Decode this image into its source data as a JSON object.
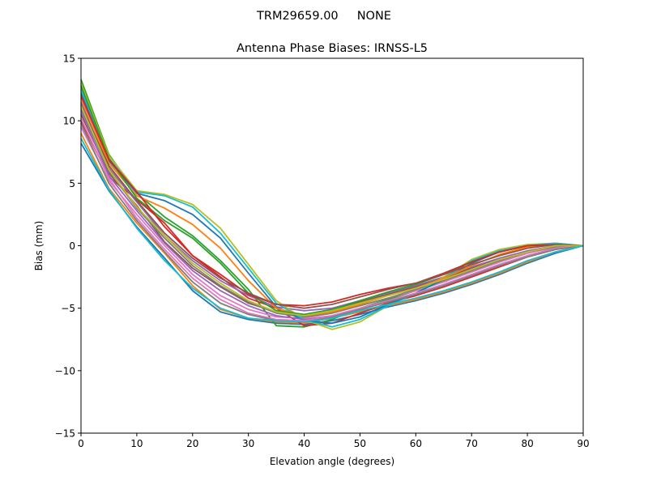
{
  "chart_data": {
    "type": "line",
    "suptitle": "TRM29659.00     NONE",
    "title": "Antenna Phase Biases: IRNSS-L5",
    "xlabel": "Elevation angle (degrees)",
    "ylabel": "Bias (mm)",
    "xlim": [
      0,
      90
    ],
    "ylim": [
      -15,
      15
    ],
    "xticks": [
      0,
      10,
      20,
      30,
      40,
      50,
      60,
      70,
      80,
      90
    ],
    "yticks": [
      -15,
      -10,
      -5,
      0,
      5,
      10,
      15
    ],
    "grid": false,
    "colors": [
      "#1f77b4",
      "#ff7f0e",
      "#2ca02c",
      "#d62728",
      "#9467bd",
      "#8c564b",
      "#e377c2",
      "#7f7f7f",
      "#bcbd22",
      "#17becf"
    ],
    "x": [
      0,
      5,
      10,
      15,
      20,
      25,
      30,
      35,
      40,
      45,
      50,
      55,
      60,
      65,
      70,
      75,
      80,
      85,
      90
    ],
    "series": [
      {
        "values": [
          8.2,
          4.4,
          1.5,
          -1.0,
          -3.6,
          -5.3,
          -5.9,
          -6.2,
          -6.3,
          -6.0,
          -5.5,
          -4.9,
          -4.4,
          -3.8,
          -3.1,
          -2.3,
          -1.4,
          -0.6,
          0
        ]
      },
      {
        "values": [
          9.0,
          4.6,
          1.8,
          -0.6,
          -3.2,
          -5.1,
          -5.8,
          -6.1,
          -6.2,
          -5.8,
          -5.3,
          -4.8,
          -4.3,
          -3.7,
          -3.0,
          -2.2,
          -1.3,
          -0.5,
          0
        ]
      },
      {
        "values": [
          13.3,
          7.3,
          4.2,
          2.3,
          0.8,
          -1.2,
          -3.5,
          -6.4,
          -6.5,
          -5.9,
          -5.0,
          -4.3,
          -3.6,
          -2.9,
          -2.1,
          -1.3,
          -0.6,
          -0.1,
          0
        ]
      },
      {
        "values": [
          10.0,
          5.5,
          3.7,
          1.8,
          -0.8,
          -2.5,
          -4.2,
          -5.0,
          -6.4,
          -6.2,
          -5.4,
          -4.6,
          -4.0,
          -3.3,
          -2.5,
          -1.7,
          -0.9,
          -0.3,
          0
        ]
      },
      {
        "values": [
          11.5,
          6.2,
          3.5,
          0.8,
          -1.2,
          -2.8,
          -4.0,
          -4.9,
          -5.2,
          -5.0,
          -4.4,
          -3.8,
          -3.2,
          -2.5,
          -1.7,
          -1.0,
          -0.4,
          0.0,
          0
        ]
      },
      {
        "values": [
          10.5,
          5.8,
          3.2,
          0.3,
          -1.8,
          -3.3,
          -4.6,
          -5.3,
          -5.5,
          -5.1,
          -4.5,
          -3.9,
          -3.3,
          -2.6,
          -1.8,
          -1.1,
          -0.5,
          -0.1,
          0
        ]
      },
      {
        "values": [
          9.5,
          5.2,
          2.5,
          0.0,
          -2.3,
          -4.0,
          -5.1,
          -5.7,
          -5.8,
          -5.4,
          -4.8,
          -4.2,
          -3.6,
          -2.9,
          -2.1,
          -1.3,
          -0.6,
          -0.1,
          0
        ]
      },
      {
        "values": [
          11.0,
          6.0,
          3.0,
          0.6,
          -1.6,
          -3.2,
          -4.5,
          -5.4,
          -5.7,
          -5.4,
          -4.8,
          -4.2,
          -3.5,
          -2.8,
          -2.0,
          -1.2,
          -0.5,
          -0.1,
          0
        ]
      },
      {
        "values": [
          13.0,
          7.2,
          4.4,
          4.1,
          3.3,
          1.4,
          -1.5,
          -4.4,
          -5.9,
          -6.7,
          -6.1,
          -4.8,
          -3.8,
          -2.5,
          -1.1,
          -0.3,
          0.1,
          0.2,
          0
        ]
      },
      {
        "values": [
          12.5,
          7.0,
          4.3,
          4.0,
          3.1,
          1.0,
          -1.8,
          -4.6,
          -5.9,
          -6.5,
          -5.9,
          -4.8,
          -3.8,
          -2.6,
          -1.2,
          -0.4,
          0.0,
          0.2,
          0
        ]
      },
      {
        "values": [
          12.2,
          6.8,
          4.2,
          3.6,
          2.5,
          0.6,
          -2.2,
          -4.9,
          -6.0,
          -6.2,
          -5.7,
          -4.7,
          -3.8,
          -2.7,
          -1.4,
          -0.5,
          0.0,
          0.1,
          0
        ]
      },
      {
        "values": [
          11.8,
          6.6,
          4.0,
          3.0,
          1.7,
          -0.2,
          -2.8,
          -5.0,
          -5.6,
          -5.3,
          -4.7,
          -4.0,
          -3.4,
          -2.6,
          -1.6,
          -0.7,
          -0.1,
          0.1,
          0
        ]
      },
      {
        "values": [
          12.8,
          7.0,
          3.8,
          2.0,
          0.6,
          -1.4,
          -3.8,
          -5.2,
          -5.5,
          -5.1,
          -4.4,
          -3.7,
          -3.1,
          -2.3,
          -1.3,
          -0.5,
          0.0,
          0.1,
          0
        ]
      },
      {
        "values": [
          12.0,
          6.9,
          4.3,
          1.5,
          -0.8,
          -2.3,
          -3.9,
          -4.7,
          -4.8,
          -4.5,
          -3.9,
          -3.4,
          -3.0,
          -2.2,
          -1.3,
          -0.5,
          0.0,
          0.1,
          0
        ]
      },
      {
        "values": [
          10.8,
          5.6,
          2.8,
          0.2,
          -2.0,
          -3.6,
          -4.8,
          -5.6,
          -5.9,
          -5.6,
          -5.0,
          -4.4,
          -3.8,
          -3.1,
          -2.3,
          -1.5,
          -0.8,
          -0.2,
          0
        ]
      },
      {
        "values": [
          11.3,
          6.4,
          3.6,
          1.0,
          -1.0,
          -2.6,
          -3.8,
          -4.7,
          -5.0,
          -4.7,
          -4.1,
          -3.5,
          -3.0,
          -2.3,
          -1.5,
          -0.8,
          -0.2,
          0.1,
          0
        ]
      },
      {
        "values": [
          10.2,
          5.4,
          2.2,
          -0.3,
          -2.6,
          -4.3,
          -5.4,
          -5.9,
          -6.0,
          -5.6,
          -5.0,
          -4.4,
          -3.8,
          -3.1,
          -2.3,
          -1.5,
          -0.8,
          -0.2,
          0
        ]
      },
      {
        "values": [
          9.8,
          5.0,
          2.0,
          -0.5,
          -2.9,
          -4.6,
          -5.5,
          -6.0,
          -6.1,
          -5.7,
          -5.1,
          -4.5,
          -3.9,
          -3.2,
          -2.4,
          -1.6,
          -0.9,
          -0.3,
          0
        ]
      },
      {
        "values": [
          11.2,
          6.1,
          3.1,
          0.8,
          -1.4,
          -3.0,
          -4.4,
          -5.3,
          -5.6,
          -5.2,
          -4.6,
          -4.0,
          -3.4,
          -2.7,
          -1.9,
          -1.1,
          -0.5,
          0.0,
          0
        ]
      },
      {
        "values": [
          8.6,
          4.5,
          1.4,
          -1.2,
          -3.4,
          -5.0,
          -5.8,
          -6.0,
          -6.1,
          -5.8,
          -5.2,
          -4.7,
          -4.2,
          -3.6,
          -2.9,
          -2.1,
          -1.2,
          -0.5,
          0
        ]
      }
    ]
  }
}
